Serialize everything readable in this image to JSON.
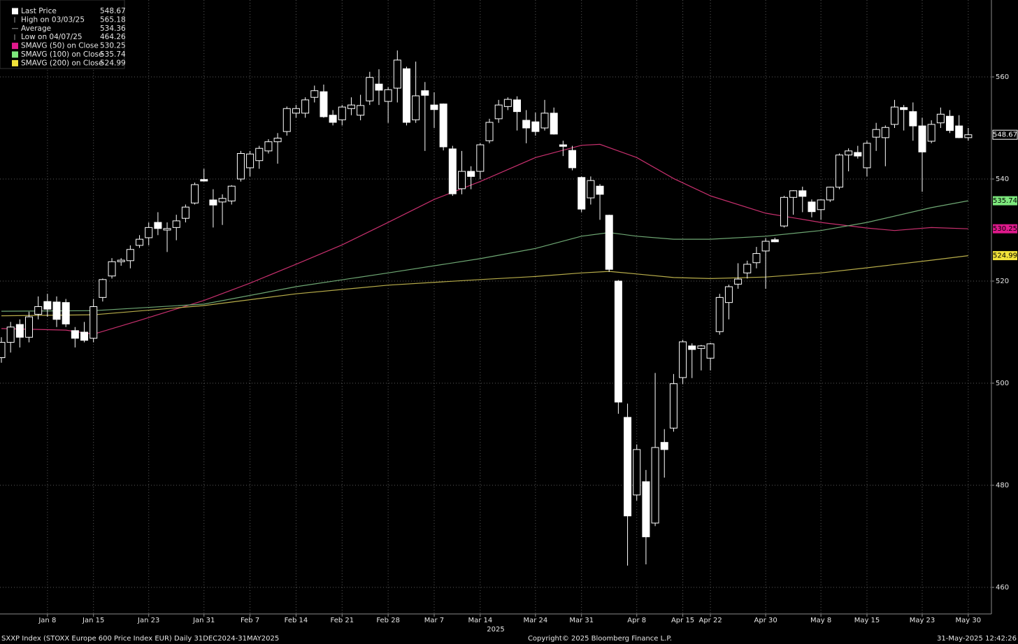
{
  "chart_data": {
    "type": "candlestick",
    "last_label": "Last Price",
    "high_label": "High on 03/03/25",
    "average": {
      "label": "Average",
      "value": 534.36
    },
    "low_label": "Low on 04/07/25",
    "x_axis_label": "2025",
    "footer_left": "SXXP Index (STOXX Europe 600 Price Index EUR)  Daily 31DEC2024-31MAY2025",
    "footer_center": "Copyright© 2025 Bloomberg Finance L.P.",
    "footer_right": "31-May-2025 12:42:26",
    "color": "#ffffff",
    "grid": true,
    "ylim": [
      455,
      575
    ],
    "yticks": [
      460,
      480,
      500,
      520,
      540,
      560
    ],
    "categories": [
      null,
      null,
      null,
      null,
      null,
      "Jan 8",
      null,
      null,
      null,
      null,
      "Jan 15",
      null,
      null,
      null,
      null,
      null,
      "Jan 23",
      null,
      null,
      null,
      null,
      null,
      "Jan 31",
      null,
      null,
      null,
      null,
      "Feb 7",
      null,
      null,
      null,
      null,
      "Feb 14",
      null,
      null,
      null,
      null,
      "Feb 21",
      null,
      null,
      null,
      null,
      "Feb 28",
      null,
      null,
      null,
      null,
      "Mar 7",
      null,
      null,
      null,
      null,
      "Mar 14",
      null,
      null,
      null,
      null,
      null,
      "Mar 24",
      null,
      null,
      null,
      null,
      "Mar 31",
      null,
      null,
      null,
      null,
      null,
      "Apr 8",
      null,
      null,
      null,
      null,
      "Apr 15",
      null,
      null,
      "Apr 22",
      null,
      null,
      null,
      null,
      null,
      "Apr 30",
      null,
      null,
      null,
      null,
      null,
      "May 8",
      null,
      null,
      null,
      null,
      "May 15",
      null,
      null,
      null,
      null,
      null,
      "May 23",
      null,
      null,
      null,
      null,
      "May 30"
    ],
    "open": [
      505,
      508,
      511.5,
      509,
      513.5,
      516,
      515.9,
      515.8,
      510.3,
      510,
      508.8,
      516.8,
      521,
      523.8,
      524,
      527,
      528.5,
      531.5,
      530,
      530.5,
      532.3,
      535.3,
      539.9,
      535.9,
      535.5,
      535.7,
      540,
      542.2,
      543.6,
      545.5,
      547.3,
      549.3,
      552.9,
      552.9,
      556,
      557.1,
      552.5,
      551.6,
      553.8,
      552.5,
      555.3,
      558.6,
      555.2,
      557.8,
      561.6,
      551.6,
      557.3,
      554.5,
      554.7,
      545.9,
      538.1,
      541.5,
      541.5,
      547.5,
      551.8,
      554.2,
      555.5,
      551.5,
      551.2,
      550,
      552.9,
      546.7,
      545.6,
      540.3,
      536.3,
      538.6,
      532.9,
      520,
      493.3,
      478.1,
      480.7,
      472.6,
      488.4,
      491.2,
      501.1,
      507.3,
      506.8,
      504.9,
      510.1,
      515.8,
      519.4,
      521.6,
      523.6,
      525.9,
      528.1,
      530.8,
      536.4,
      537.7,
      535.5,
      534,
      535.9,
      538.4,
      544.7,
      545.2,
      542.2,
      548.2,
      548.1,
      550.7,
      554,
      553.2,
      550.4,
      547.4,
      551,
      552.3,
      550.4,
      548.1
    ],
    "high": [
      509,
      512,
      512.5,
      514,
      517,
      517.5,
      517,
      516.5,
      511,
      512,
      516.5,
      520.5,
      524.5,
      524.5,
      527,
      529,
      531.5,
      533.5,
      531.5,
      533,
      535,
      539.3,
      542,
      538,
      537,
      538.8,
      545.5,
      545.5,
      546.5,
      547.8,
      549,
      554.2,
      554.5,
      556,
      558.3,
      558.5,
      553.5,
      554.5,
      556,
      556.5,
      561,
      561.5,
      558,
      565.18,
      562,
      563,
      559,
      557,
      554.8,
      546.5,
      545.5,
      542.5,
      547,
      551.8,
      555.5,
      556,
      556.2,
      553.5,
      553,
      555.5,
      554,
      547.5,
      546.5,
      540.5,
      540.5,
      539,
      533,
      520.2,
      496,
      488,
      483,
      502,
      491,
      501.8,
      508.5,
      507.8,
      507.5,
      507.9,
      517.5,
      519.3,
      523.5,
      524,
      526.7,
      528.4,
      528.5,
      536.7,
      537.8,
      538.5,
      536,
      536,
      538.5,
      545,
      546,
      546.5,
      547.5,
      551,
      550.5,
      555.5,
      554.5,
      555,
      552,
      551.5,
      554,
      553.5,
      552.5,
      550
    ],
    "low": [
      504,
      506,
      507,
      508,
      512.5,
      513,
      511,
      511,
      507,
      508,
      508,
      516,
      520.5,
      523,
      522.5,
      526.5,
      527,
      529,
      525.7,
      528,
      531.5,
      535,
      539.5,
      530.5,
      531,
      535,
      539.5,
      540.5,
      542,
      545,
      543,
      548.5,
      552,
      552,
      555,
      552,
      550.5,
      550.5,
      552.5,
      551.5,
      554.5,
      554.5,
      551,
      555,
      550.5,
      551,
      545.5,
      550,
      545.6,
      536.7,
      537,
      538,
      540,
      547,
      551,
      553.5,
      549.5,
      547,
      548.5,
      549.5,
      548.7,
      544.5,
      541.7,
      533.5,
      535,
      532,
      521.8,
      494,
      464.26,
      477,
      464.5,
      472,
      481.5,
      490.5,
      499.8,
      501,
      502.5,
      502.5,
      509.5,
      512.5,
      518.5,
      520.5,
      522.5,
      518.5,
      527.6,
      530.5,
      533,
      533.5,
      532.5,
      532,
      535.5,
      538,
      541.5,
      544,
      540.5,
      545.5,
      542.5,
      550,
      549.5,
      547.5,
      537.5,
      547,
      550,
      549,
      548,
      547.5
    ],
    "close": [
      508,
      511,
      509,
      513,
      515,
      514.5,
      512.5,
      511.6,
      508.8,
      508.4,
      515,
      520.3,
      523.8,
      524.1,
      526.2,
      528.2,
      530.5,
      530.3,
      530.3,
      531.8,
      534.5,
      538.9,
      539.6,
      534.9,
      536.2,
      538.6,
      545,
      544.9,
      546,
      547.3,
      548,
      553.8,
      553.8,
      555.5,
      557.3,
      552.2,
      551.1,
      554.1,
      554.5,
      554.4,
      559.9,
      557.4,
      557.5,
      563.3,
      551.1,
      556.3,
      556.4,
      553.6,
      546.3,
      537.1,
      541.5,
      540.5,
      546.7,
      551.1,
      554.5,
      555.6,
      553.2,
      550,
      549.3,
      552.9,
      548.8,
      546.4,
      542.2,
      534.1,
      539.7,
      537,
      522.3,
      496.3,
      474,
      487,
      469.9,
      487.4,
      487,
      499.9,
      508.1,
      506.6,
      507.3,
      507.7,
      516.8,
      518.9,
      520.4,
      523.3,
      525.4,
      527.8,
      527.7,
      536.4,
      537.7,
      536.6,
      533.6,
      535.9,
      538.4,
      544.7,
      545.5,
      544.5,
      547,
      549.7,
      550.1,
      554.1,
      553.6,
      550.4,
      545.3,
      550.7,
      552.7,
      549.5,
      548.1,
      548.67
    ],
    "overlays": [
      {
        "name": "SMAVG (50)  on Close",
        "color": "#e0198c",
        "line_color": "#c8306e",
        "x": [
          0,
          7,
          10,
          15,
          22,
          27,
          32,
          37,
          42,
          47,
          52,
          58,
          63,
          65,
          69,
          73,
          77,
          83,
          89,
          94,
          97,
          101,
          105
        ],
        "values": [
          510.7,
          510.4,
          509.6,
          512.3,
          516.2,
          519.6,
          523.3,
          527.1,
          531.5,
          536,
          539.5,
          544.2,
          546.6,
          546.8,
          544.2,
          540.1,
          536.7,
          533.3,
          531.5,
          530.4,
          529.9,
          530.5,
          530.25
        ]
      },
      {
        "name": "SMAVG (100) on Close",
        "color": "#7de87d",
        "line_color": "#6fa874",
        "x": [
          0,
          10,
          22,
          32,
          42,
          52,
          58,
          63,
          66,
          69,
          73,
          77,
          83,
          89,
          94,
          101,
          105
        ],
        "values": [
          514.1,
          514.2,
          515.5,
          518.9,
          521.6,
          524.4,
          526.4,
          528.8,
          529.5,
          528.8,
          528.2,
          528.2,
          528.8,
          529.9,
          531.5,
          534.4,
          535.74
        ]
      },
      {
        "name": "SMAVG (200) on Close",
        "color": "#f2e33a",
        "line_color": "#b8ad4a",
        "x": [
          0,
          10,
          22,
          32,
          42,
          52,
          58,
          63,
          66,
          69,
          73,
          77,
          83,
          89,
          94,
          101,
          105
        ],
        "values": [
          513.2,
          513.4,
          515.2,
          517.5,
          519.2,
          520.3,
          520.9,
          521.6,
          521.9,
          521.4,
          520.7,
          520.5,
          520.8,
          521.6,
          522.6,
          524.1,
          524.99
        ]
      }
    ]
  }
}
